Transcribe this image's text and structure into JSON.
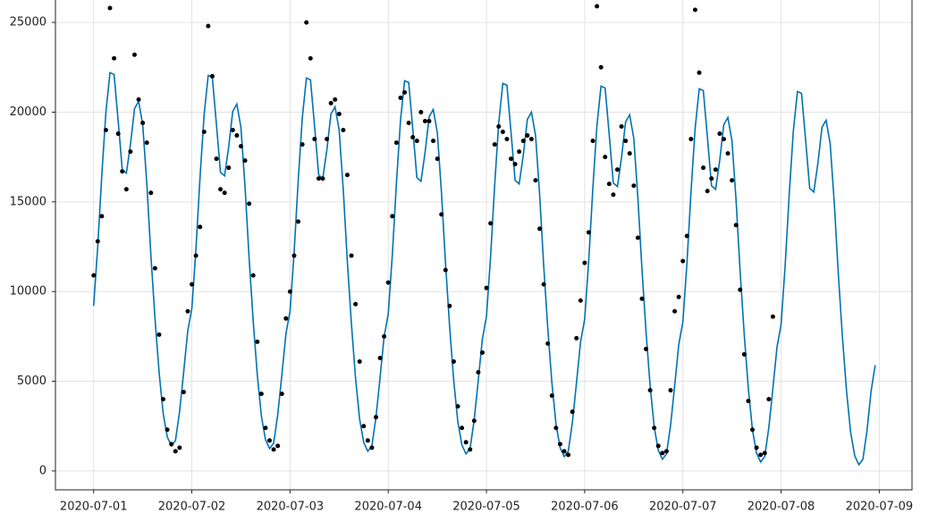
{
  "chart_data": {
    "type": "line_scatter",
    "x": [
      "2020-07-01 00:00",
      "2020-07-01 01:00",
      "2020-07-01 02:00",
      "2020-07-01 03:00",
      "2020-07-01 04:00",
      "2020-07-01 05:00",
      "2020-07-01 06:00",
      "2020-07-01 07:00",
      "2020-07-01 08:00",
      "2020-07-01 09:00",
      "2020-07-01 10:00",
      "2020-07-01 11:00",
      "2020-07-01 12:00",
      "2020-07-01 13:00",
      "2020-07-01 14:00",
      "2020-07-01 15:00",
      "2020-07-01 16:00",
      "2020-07-01 17:00",
      "2020-07-01 18:00",
      "2020-07-01 19:00",
      "2020-07-01 20:00",
      "2020-07-01 21:00",
      "2020-07-01 22:00",
      "2020-07-01 23:00",
      "2020-07-02 00:00",
      "2020-07-02 01:00",
      "2020-07-02 02:00",
      "2020-07-02 03:00",
      "2020-07-02 04:00",
      "2020-07-02 05:00",
      "2020-07-02 06:00",
      "2020-07-02 07:00",
      "2020-07-02 08:00",
      "2020-07-02 09:00",
      "2020-07-02 10:00",
      "2020-07-02 11:00",
      "2020-07-02 12:00",
      "2020-07-02 13:00",
      "2020-07-02 14:00",
      "2020-07-02 15:00",
      "2020-07-02 16:00",
      "2020-07-02 17:00",
      "2020-07-02 18:00",
      "2020-07-02 19:00",
      "2020-07-02 20:00",
      "2020-07-02 21:00",
      "2020-07-02 22:00",
      "2020-07-02 23:00",
      "2020-07-03 00:00",
      "2020-07-03 01:00",
      "2020-07-03 02:00",
      "2020-07-03 03:00",
      "2020-07-03 04:00",
      "2020-07-03 05:00",
      "2020-07-03 06:00",
      "2020-07-03 07:00",
      "2020-07-03 08:00",
      "2020-07-03 09:00",
      "2020-07-03 10:00",
      "2020-07-03 11:00",
      "2020-07-03 12:00",
      "2020-07-03 13:00",
      "2020-07-03 14:00",
      "2020-07-03 15:00",
      "2020-07-03 16:00",
      "2020-07-03 17:00",
      "2020-07-03 18:00",
      "2020-07-03 19:00",
      "2020-07-03 20:00",
      "2020-07-03 21:00",
      "2020-07-03 22:00",
      "2020-07-03 23:00",
      "2020-07-04 00:00",
      "2020-07-04 01:00",
      "2020-07-04 02:00",
      "2020-07-04 03:00",
      "2020-07-04 04:00",
      "2020-07-04 05:00",
      "2020-07-04 06:00",
      "2020-07-04 07:00",
      "2020-07-04 08:00",
      "2020-07-04 09:00",
      "2020-07-04 10:00",
      "2020-07-04 11:00",
      "2020-07-04 12:00",
      "2020-07-04 13:00",
      "2020-07-04 14:00",
      "2020-07-04 15:00",
      "2020-07-04 16:00",
      "2020-07-04 17:00",
      "2020-07-04 18:00",
      "2020-07-04 19:00",
      "2020-07-04 20:00",
      "2020-07-04 21:00",
      "2020-07-04 22:00",
      "2020-07-04 23:00",
      "2020-07-05 00:00",
      "2020-07-05 01:00",
      "2020-07-05 02:00",
      "2020-07-05 03:00",
      "2020-07-05 04:00",
      "2020-07-05 05:00",
      "2020-07-05 06:00",
      "2020-07-05 07:00",
      "2020-07-05 08:00",
      "2020-07-05 09:00",
      "2020-07-05 10:00",
      "2020-07-05 11:00",
      "2020-07-05 12:00",
      "2020-07-05 13:00",
      "2020-07-05 14:00",
      "2020-07-05 15:00",
      "2020-07-05 16:00",
      "2020-07-05 17:00",
      "2020-07-05 18:00",
      "2020-07-05 19:00",
      "2020-07-05 20:00",
      "2020-07-05 21:00",
      "2020-07-05 22:00",
      "2020-07-05 23:00",
      "2020-07-06 00:00",
      "2020-07-06 01:00",
      "2020-07-06 02:00",
      "2020-07-06 03:00",
      "2020-07-06 04:00",
      "2020-07-06 05:00",
      "2020-07-06 06:00",
      "2020-07-06 07:00",
      "2020-07-06 08:00",
      "2020-07-06 09:00",
      "2020-07-06 10:00",
      "2020-07-06 11:00",
      "2020-07-06 12:00",
      "2020-07-06 13:00",
      "2020-07-06 14:00",
      "2020-07-06 15:00",
      "2020-07-06 16:00",
      "2020-07-06 17:00",
      "2020-07-06 18:00",
      "2020-07-06 19:00",
      "2020-07-06 20:00",
      "2020-07-06 21:00",
      "2020-07-06 22:00",
      "2020-07-06 23:00",
      "2020-07-07 00:00",
      "2020-07-07 01:00",
      "2020-07-07 02:00",
      "2020-07-07 03:00",
      "2020-07-07 04:00",
      "2020-07-07 05:00",
      "2020-07-07 06:00",
      "2020-07-07 07:00",
      "2020-07-07 08:00",
      "2020-07-07 09:00",
      "2020-07-07 10:00",
      "2020-07-07 11:00",
      "2020-07-07 12:00",
      "2020-07-07 13:00",
      "2020-07-07 14:00",
      "2020-07-07 15:00",
      "2020-07-07 16:00",
      "2020-07-07 17:00",
      "2020-07-07 18:00",
      "2020-07-07 19:00",
      "2020-07-07 20:00",
      "2020-07-07 21:00",
      "2020-07-07 22:00",
      "2020-07-07 23:00",
      "2020-07-08 00:00",
      "2020-07-08 01:00",
      "2020-07-08 02:00",
      "2020-07-08 03:00",
      "2020-07-08 04:00",
      "2020-07-08 05:00",
      "2020-07-08 06:00",
      "2020-07-08 07:00",
      "2020-07-08 08:00",
      "2020-07-08 09:00",
      "2020-07-08 10:00",
      "2020-07-08 11:00",
      "2020-07-08 12:00",
      "2020-07-08 13:00",
      "2020-07-08 14:00",
      "2020-07-08 15:00",
      "2020-07-08 16:00",
      "2020-07-08 17:00",
      "2020-07-08 18:00",
      "2020-07-08 19:00",
      "2020-07-08 20:00",
      "2020-07-08 21:00",
      "2020-07-08 22:00",
      "2020-07-08 23:00"
    ],
    "series": [
      {
        "type": "line",
        "color": "#0072b2",
        "values": [
          9200,
          12500,
          16500,
          20000,
          22200,
          22100,
          19500,
          16800,
          16600,
          18200,
          20200,
          20600,
          19300,
          16000,
          12000,
          8500,
          5500,
          3200,
          1900,
          1400,
          1700,
          3300,
          5500,
          7800,
          9050,
          12350,
          16350,
          19850,
          22050,
          21950,
          19350,
          16650,
          16450,
          18050,
          20050,
          20450,
          19150,
          15850,
          11850,
          8350,
          5350,
          3050,
          1750,
          1250,
          1550,
          3150,
          5350,
          7650,
          8900,
          12200,
          16200,
          19700,
          21900,
          21800,
          19200,
          16500,
          16300,
          17900,
          19900,
          20300,
          19000,
          15700,
          11700,
          8200,
          5200,
          2900,
          1600,
          1100,
          1400,
          3000,
          5200,
          7500,
          8750,
          12050,
          16050,
          19550,
          21750,
          21650,
          19050,
          16350,
          16150,
          17750,
          19750,
          20150,
          18850,
          15550,
          11550,
          8050,
          5050,
          2750,
          1450,
          950,
          1250,
          2850,
          5050,
          7350,
          8600,
          11900,
          15900,
          19400,
          21600,
          21500,
          18900,
          16200,
          16000,
          17600,
          19600,
          20000,
          18700,
          15400,
          11400,
          7900,
          4900,
          2600,
          1300,
          800,
          1100,
          2700,
          4900,
          7200,
          8450,
          11750,
          15750,
          19250,
          21450,
          21350,
          18750,
          16050,
          15850,
          17450,
          19450,
          19850,
          18550,
          15250,
          11250,
          7750,
          4750,
          2450,
          1150,
          650,
          950,
          2550,
          4750,
          7050,
          8300,
          11600,
          15600,
          19100,
          21300,
          21200,
          18600,
          15900,
          15700,
          17300,
          19300,
          19700,
          18400,
          15100,
          11100,
          7600,
          4600,
          2300,
          1000,
          500,
          800,
          2400,
          4600,
          6900,
          8150,
          11450,
          15450,
          18950,
          21150,
          21050,
          18450,
          15750,
          15550,
          17150,
          19150,
          19550,
          18250,
          14950,
          10950,
          7450,
          4450,
          2150,
          850,
          350,
          650,
          2250,
          4450,
          5900
        ]
      },
      {
        "type": "scatter",
        "color": "#000000",
        "values": [
          10900,
          12800,
          14200,
          19000,
          25800,
          23000,
          18800,
          16700,
          15700,
          17800,
          23200,
          20700,
          19400,
          18300,
          15500,
          11300,
          7600,
          4000,
          2300,
          1500,
          1100,
          1300,
          4400,
          8900,
          10400,
          12000,
          13600,
          18900,
          24800,
          22000,
          17400,
          15700,
          15500,
          16900,
          19000,
          18700,
          18100,
          17300,
          14900,
          10900,
          7200,
          4300,
          2400,
          1700,
          1200,
          1400,
          4300,
          8500,
          10000,
          12000,
          13900,
          18200,
          25000,
          23000,
          18500,
          16300,
          16300,
          18500,
          20500,
          20700,
          19900,
          19000,
          16500,
          12000,
          9300,
          6100,
          2500,
          1700,
          1300,
          3000,
          6300,
          7500,
          10500,
          14200,
          18300,
          20800,
          21100,
          19400,
          18600,
          18400,
          20000,
          19500,
          19500,
          18400,
          17400,
          14300,
          11200,
          9200,
          6100,
          3600,
          2400,
          1600,
          1200,
          2800,
          5500,
          6600,
          10200,
          13800,
          18200,
          19200,
          18900,
          18500,
          17400,
          17100,
          17800,
          18400,
          18700,
          18500,
          16200,
          13500,
          10400,
          7100,
          4200,
          2400,
          1500,
          1100,
          900,
          3300,
          7400,
          9500,
          11600,
          13300,
          18400,
          25900,
          22500,
          17500,
          16000,
          15400,
          16800,
          19200,
          18400,
          17700,
          15900,
          13000,
          9600,
          6800,
          4500,
          2400,
          1400,
          1000,
          1100,
          4500,
          8900,
          9700,
          11700,
          13100,
          18500,
          25700,
          22200,
          16900,
          15600,
          16300,
          16800,
          18800,
          18500,
          17700,
          16200,
          13700,
          10100,
          6500,
          3900,
          2300,
          1300,
          900,
          1000,
          4000,
          8600,
          null,
          null,
          null,
          null,
          null,
          null,
          null,
          null,
          null,
          null,
          null,
          null,
          null,
          null,
          null,
          null,
          null,
          null,
          null,
          null,
          null,
          null,
          null,
          null,
          null
        ]
      }
    ],
    "xlim": [
      "2020-06-30 14:40",
      "2020-07-09 08:00"
    ],
    "xticks": [
      "2020-07-01",
      "2020-07-02",
      "2020-07-03",
      "2020-07-04",
      "2020-07-05",
      "2020-07-06",
      "2020-07-07",
      "2020-07-08",
      "2020-07-09"
    ],
    "ylim": [
      -1050,
      26250
    ],
    "yticks": [
      0,
      5000,
      10000,
      15000,
      20000,
      25000
    ],
    "grid": true
  }
}
